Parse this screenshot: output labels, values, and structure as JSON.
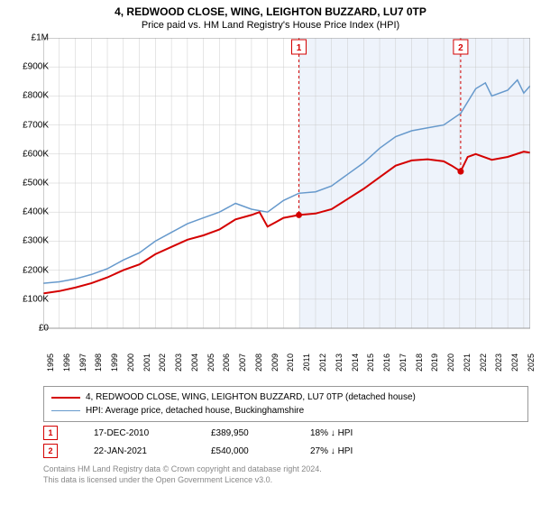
{
  "title": "4, REDWOOD CLOSE, WING, LEIGHTON BUZZARD, LU7 0TP",
  "subtitle": "Price paid vs. HM Land Registry's House Price Index (HPI)",
  "chart": {
    "type": "line",
    "background_color": "#ffffff",
    "grid_color": "#cccccc",
    "highlight_band": {
      "from": 2010.96,
      "to": 2025.4,
      "color": "#eef3fb"
    },
    "xlim": [
      1995,
      2025.4
    ],
    "ylim": [
      0,
      1000000
    ],
    "xticks": [
      1995,
      1996,
      1997,
      1998,
      1999,
      2000,
      2001,
      2002,
      2003,
      2004,
      2005,
      2006,
      2007,
      2008,
      2009,
      2010,
      2011,
      2012,
      2013,
      2014,
      2015,
      2016,
      2017,
      2018,
      2019,
      2020,
      2021,
      2022,
      2023,
      2024,
      2025
    ],
    "yticks": [
      {
        "v": 0,
        "label": "£0"
      },
      {
        "v": 100000,
        "label": "£100K"
      },
      {
        "v": 200000,
        "label": "£200K"
      },
      {
        "v": 300000,
        "label": "£300K"
      },
      {
        "v": 400000,
        "label": "£400K"
      },
      {
        "v": 500000,
        "label": "£500K"
      },
      {
        "v": 600000,
        "label": "£600K"
      },
      {
        "v": 700000,
        "label": "£700K"
      },
      {
        "v": 800000,
        "label": "£800K"
      },
      {
        "v": 900000,
        "label": "£900K"
      },
      {
        "v": 1000000,
        "label": "£1M"
      }
    ],
    "series": [
      {
        "name": "hpi",
        "label": "HPI: Average price, detached house, Buckinghamshire",
        "color": "#6699cc",
        "width": 1.5,
        "points": [
          [
            1995,
            155000
          ],
          [
            1996,
            160000
          ],
          [
            1997,
            170000
          ],
          [
            1998,
            185000
          ],
          [
            1999,
            205000
          ],
          [
            2000,
            235000
          ],
          [
            2001,
            260000
          ],
          [
            2002,
            300000
          ],
          [
            2003,
            330000
          ],
          [
            2004,
            360000
          ],
          [
            2005,
            380000
          ],
          [
            2006,
            400000
          ],
          [
            2007,
            430000
          ],
          [
            2008,
            410000
          ],
          [
            2009,
            400000
          ],
          [
            2010,
            440000
          ],
          [
            2010.96,
            465000
          ],
          [
            2012,
            470000
          ],
          [
            2013,
            490000
          ],
          [
            2014,
            530000
          ],
          [
            2015,
            570000
          ],
          [
            2016,
            620000
          ],
          [
            2017,
            660000
          ],
          [
            2018,
            680000
          ],
          [
            2019,
            690000
          ],
          [
            2020,
            700000
          ],
          [
            2021.06,
            740000
          ],
          [
            2022,
            825000
          ],
          [
            2022.6,
            845000
          ],
          [
            2023,
            800000
          ],
          [
            2024,
            820000
          ],
          [
            2024.6,
            855000
          ],
          [
            2025,
            810000
          ],
          [
            2025.4,
            835000
          ]
        ]
      },
      {
        "name": "property",
        "label": "4, REDWOOD CLOSE, WING, LEIGHTON BUZZARD, LU7 0TP (detached house)",
        "color": "#d40000",
        "width": 2,
        "points": [
          [
            1995,
            120000
          ],
          [
            1996,
            128000
          ],
          [
            1997,
            140000
          ],
          [
            1998,
            155000
          ],
          [
            1999,
            175000
          ],
          [
            2000,
            200000
          ],
          [
            2001,
            220000
          ],
          [
            2002,
            255000
          ],
          [
            2003,
            280000
          ],
          [
            2004,
            305000
          ],
          [
            2005,
            320000
          ],
          [
            2006,
            340000
          ],
          [
            2007,
            375000
          ],
          [
            2008,
            390000
          ],
          [
            2008.5,
            400000
          ],
          [
            2009,
            350000
          ],
          [
            2009.5,
            365000
          ],
          [
            2010,
            380000
          ],
          [
            2010.96,
            389950
          ],
          [
            2012,
            395000
          ],
          [
            2013,
            410000
          ],
          [
            2014,
            445000
          ],
          [
            2015,
            480000
          ],
          [
            2016,
            520000
          ],
          [
            2017,
            560000
          ],
          [
            2018,
            578000
          ],
          [
            2019,
            582000
          ],
          [
            2020,
            575000
          ],
          [
            2020.5,
            560000
          ],
          [
            2021.06,
            540000
          ],
          [
            2021.5,
            590000
          ],
          [
            2022,
            600000
          ],
          [
            2023,
            580000
          ],
          [
            2024,
            590000
          ],
          [
            2025,
            608000
          ],
          [
            2025.4,
            605000
          ]
        ]
      }
    ],
    "sale_markers": [
      {
        "n": 1,
        "x": 2010.96,
        "y": 389950
      },
      {
        "n": 2,
        "x": 2021.06,
        "y": 540000
      }
    ],
    "marker_color": "#d40000",
    "marker_line_color": "#d40000"
  },
  "sales": [
    {
      "n": "1",
      "date": "17-DEC-2010",
      "price": "£389,950",
      "delta": "18% ↓ HPI"
    },
    {
      "n": "2",
      "date": "22-JAN-2021",
      "price": "£540,000",
      "delta": "27% ↓ HPI"
    }
  ],
  "footer1": "Contains HM Land Registry data © Crown copyright and database right 2024.",
  "footer2": "This data is licensed under the Open Government Licence v3.0."
}
